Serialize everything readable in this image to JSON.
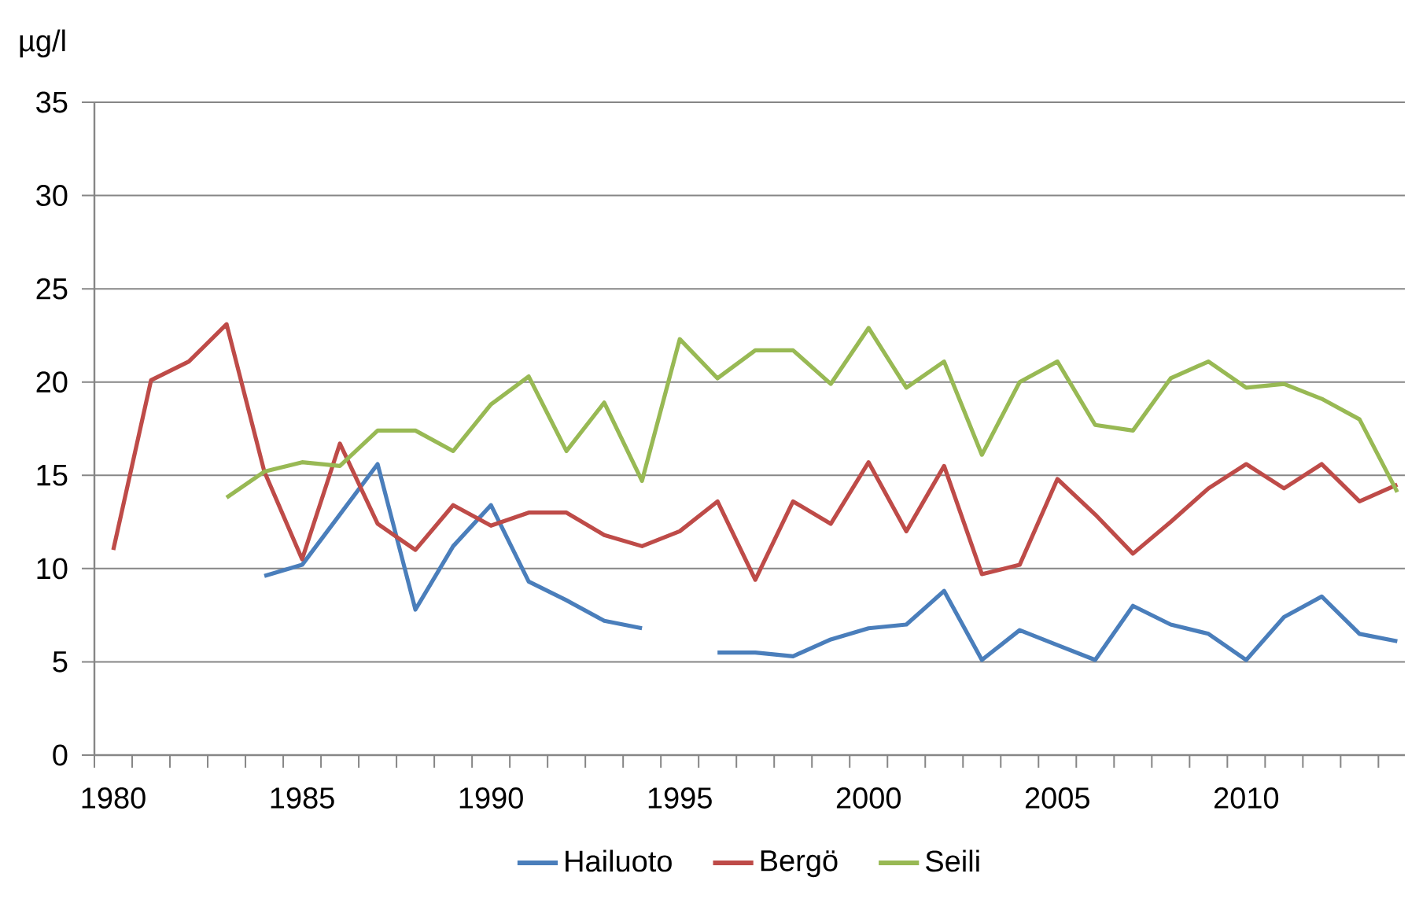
{
  "chart_data": {
    "type": "line",
    "ylabel": "µg/l",
    "categories": [
      "1980",
      null,
      null,
      null,
      null,
      "1985",
      null,
      null,
      null,
      null,
      "1990",
      null,
      null,
      null,
      null,
      "1995",
      null,
      null,
      null,
      null,
      "2000",
      null,
      null,
      null,
      null,
      "2005",
      null,
      null,
      null,
      null,
      "2010",
      null,
      null,
      null,
      null
    ],
    "series": [
      {
        "name": "Hailuoto",
        "color": "#4a7ebb",
        "values": [
          null,
          null,
          null,
          null,
          9.6,
          10.2,
          12.9,
          15.6,
          7.8,
          11.2,
          13.4,
          9.3,
          8.3,
          7.2,
          6.8,
          null,
          5.5,
          5.5,
          5.3,
          6.2,
          6.8,
          7.0,
          8.8,
          5.1,
          6.7,
          5.9,
          5.1,
          8.0,
          7.0,
          6.5,
          5.1,
          7.4,
          8.5,
          6.5,
          6.1
        ]
      },
      {
        "name": "Bergö",
        "color": "#be4b48",
        "values": [
          11.0,
          20.1,
          21.1,
          23.1,
          15.2,
          10.5,
          16.7,
          12.4,
          11.0,
          13.4,
          12.3,
          13.0,
          13.0,
          11.8,
          11.2,
          12.0,
          13.6,
          9.4,
          13.6,
          12.4,
          15.7,
          12.0,
          15.5,
          9.7,
          10.2,
          14.8,
          12.9,
          10.8,
          12.5,
          14.3,
          15.6,
          14.3,
          15.6,
          13.6,
          14.5
        ]
      },
      {
        "name": "Seili",
        "color": "#98b954",
        "values": [
          null,
          null,
          null,
          13.8,
          15.2,
          15.7,
          15.5,
          17.4,
          17.4,
          16.3,
          18.8,
          20.3,
          16.3,
          18.9,
          14.7,
          22.3,
          20.2,
          21.7,
          21.7,
          19.9,
          22.9,
          19.7,
          21.1,
          16.1,
          20.0,
          21.1,
          17.7,
          17.4,
          20.2,
          21.1,
          19.7,
          19.9,
          19.1,
          18.0,
          14.1
        ]
      }
    ],
    "ylim": [
      0,
      35
    ],
    "yticks": [
      0,
      5,
      10,
      15,
      20,
      25,
      30,
      35
    ],
    "grid": "y",
    "legend": "bottom"
  }
}
